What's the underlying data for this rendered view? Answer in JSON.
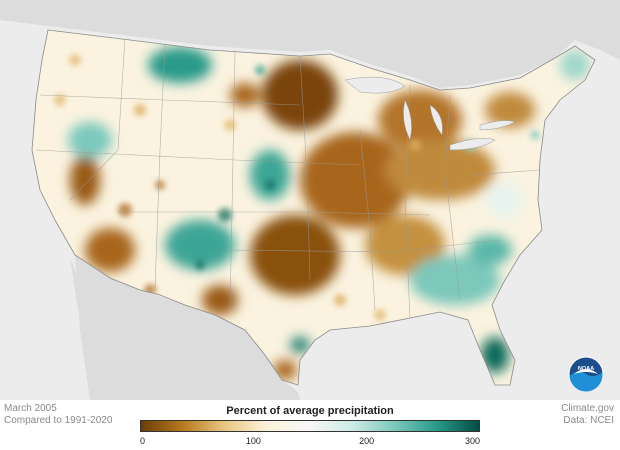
{
  "map": {
    "date_label": "March 2005",
    "baseline_label": "Compared to 1991-2020",
    "source_site": "Climate.gov",
    "source_data": "Data: NCEI",
    "legend": {
      "title": "Percent of average precipitation",
      "ticks": [
        "0",
        "100",
        "200",
        "300"
      ],
      "tick_values": [
        0,
        100,
        200,
        300
      ],
      "range": [
        0,
        300
      ],
      "colors": [
        "#6b3d07",
        "#b87a1f",
        "#e9c886",
        "#fbf2dc",
        "#f7f7f7",
        "#cdebe4",
        "#7cc8bb",
        "#2a9a8a",
        "#014d43"
      ]
    },
    "logo_text": "NOAA",
    "colors": {
      "ocean_background": "#e9e9e9",
      "land_outside": "#d9d9d9",
      "us_base": "#fbf3e0",
      "dry": "#a8661b",
      "very_dry": "#7a4508",
      "wet": "#7fcabd",
      "very_wet": "#0f6b5c",
      "noaa_blue": "#1c4e8c",
      "noaa_light": "#1f8fd6"
    }
  }
}
